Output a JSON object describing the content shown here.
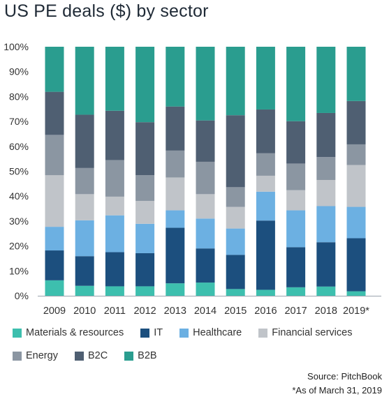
{
  "title": "US PE deals ($) by sector",
  "chart_data": {
    "type": "bar",
    "stacked": true,
    "percent": true,
    "title": "US PE deals ($) by sector",
    "xlabel": "",
    "ylabel": "",
    "ylim": [
      0,
      100
    ],
    "yticks": [
      "0%",
      "10%",
      "20%",
      "30%",
      "40%",
      "50%",
      "60%",
      "70%",
      "80%",
      "90%",
      "100%"
    ],
    "grid": false,
    "legend_position": "bottom",
    "categories": [
      "2009",
      "2010",
      "2011",
      "2012",
      "2013",
      "2014",
      "2015",
      "2016",
      "2017",
      "2018",
      "2019*"
    ],
    "series": [
      {
        "name": "Materials & resources",
        "color": "#3dbfae",
        "values": [
          6.2,
          4.0,
          3.8,
          3.8,
          5.0,
          5.3,
          2.7,
          2.4,
          3.4,
          3.7,
          1.8
        ]
      },
      {
        "name": "IT",
        "color": "#1c4f7e",
        "values": [
          12.0,
          11.9,
          13.7,
          13.3,
          22.3,
          13.7,
          13.7,
          27.8,
          16.1,
          17.8,
          21.3
        ]
      },
      {
        "name": "Healthcare",
        "color": "#6cb0e2",
        "values": [
          9.5,
          14.4,
          14.8,
          11.8,
          7.0,
          12.0,
          10.6,
          11.6,
          14.8,
          14.5,
          12.6
        ]
      },
      {
        "name": "Financial services",
        "color": "#c0c4c9",
        "values": [
          20.7,
          10.5,
          7.5,
          9.2,
          13.2,
          9.8,
          8.7,
          6.4,
          8.1,
          10.5,
          16.8
        ]
      },
      {
        "name": "Energy",
        "color": "#8b96a2",
        "values": [
          16.2,
          10.5,
          14.7,
          10.3,
          10.8,
          13.0,
          7.9,
          9.0,
          10.7,
          9.2,
          8.3
        ]
      },
      {
        "name": "B2C",
        "color": "#4f5f72",
        "values": [
          17.3,
          21.4,
          19.8,
          21.3,
          17.7,
          16.6,
          28.9,
          17.6,
          17.0,
          17.7,
          17.4
        ]
      },
      {
        "name": "B2B",
        "color": "#2a9d8f",
        "values": [
          18.1,
          27.3,
          25.7,
          30.3,
          24.0,
          29.6,
          27.5,
          25.2,
          29.9,
          26.6,
          21.8
        ]
      }
    ]
  },
  "legend_rows": [
    [
      "Materials & resources",
      "IT",
      "Healthcare",
      "Financial services"
    ],
    [
      "Energy",
      "B2C",
      "B2B"
    ]
  ],
  "source": "Source: PitchBook",
  "footnote": "*As of March 31, 2019"
}
